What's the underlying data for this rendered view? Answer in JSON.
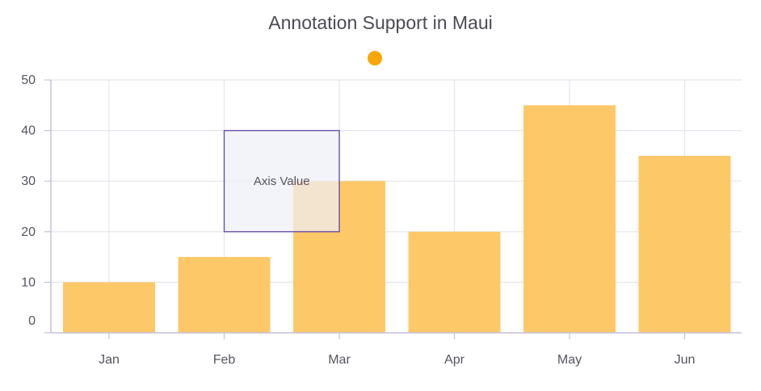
{
  "chart_data": {
    "type": "bar",
    "title": "Annotation Support in Maui",
    "categories": [
      "Jan",
      "Feb",
      "Mar",
      "Apr",
      "May",
      "Jun"
    ],
    "values": [
      10,
      15,
      30,
      20,
      45,
      35
    ],
    "y_ticks": [
      "0",
      "10",
      "20",
      "30",
      "40",
      "50"
    ],
    "ylim": [
      0,
      50
    ],
    "grid": true,
    "legend": {
      "placement": "top-center"
    },
    "colors": {
      "bar": "#fdc868",
      "legend_marker": "#f9a60a",
      "grid": "#e4e4ee",
      "axis": "#c5c0d8",
      "annotation_fill": "#efeef8",
      "annotation_stroke": "#6b4fa6"
    },
    "annotation": {
      "text": "Axis Value",
      "x_range": [
        "Feb",
        "Mar"
      ],
      "y_range": [
        20,
        40
      ]
    }
  }
}
